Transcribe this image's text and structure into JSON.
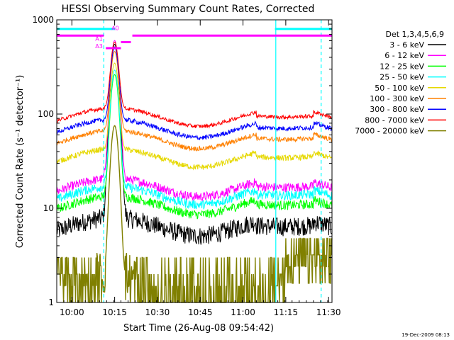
{
  "title": "HESSI Observing Summary Count Rates, Corrected",
  "footer_date": "19-Dec-2009 08:13",
  "chart_data": {
    "type": "line",
    "title": "HESSI Observing Summary Count Rates, Corrected",
    "xlabel": "Start Time (26-Aug-08 09:54:42)",
    "ylabel": "Corrected Count Rate (s⁻¹ detector⁻¹)",
    "yscale": "log",
    "ylim": [
      1,
      1000
    ],
    "xlim_minutes": [
      0,
      96.5
    ],
    "x_ticks": [
      {
        "label": "10:00",
        "min": 5.3
      },
      {
        "label": "10:15",
        "min": 20.3
      },
      {
        "label": "10:30",
        "min": 35.3
      },
      {
        "label": "10:45",
        "min": 50.3
      },
      {
        "label": "11:00",
        "min": 65.3
      },
      {
        "label": "11:15",
        "min": 80.3
      },
      {
        "label": "11:30",
        "min": 95.3
      }
    ],
    "y_ticks": [
      {
        "label": "1",
        "value": 1
      },
      {
        "label": "10",
        "value": 10
      },
      {
        "label": "100",
        "value": 100
      },
      {
        "label": "1000",
        "value": 1000
      }
    ],
    "legend_title": "Det 1,3,4,5,6,9",
    "legend_position": "right",
    "series": [
      {
        "name": "3 - 6 keV",
        "color": "#000000",
        "base": 6.5,
        "peak": 550,
        "noise": 0.1
      },
      {
        "name": "6 - 12 keV",
        "color": "#ff00ff",
        "base": 17,
        "peak": 600,
        "noise": 0.05
      },
      {
        "name": "12 - 25 keV",
        "color": "#00ff00",
        "base": 11,
        "peak": 260,
        "noise": 0.05
      },
      {
        "name": "25 - 50 keV",
        "color": "#00ffff",
        "base": 14,
        "peak": 290,
        "noise": 0.05
      },
      {
        "name": "50 - 100 keV",
        "color": "#e6d800",
        "base": 35,
        "peak": 340,
        "noise": 0.03
      },
      {
        "name": "100 - 300 keV",
        "color": "#ff8000",
        "base": 55,
        "peak": 450,
        "noise": 0.025
      },
      {
        "name": "300 - 800 keV",
        "color": "#0000ff",
        "base": 72,
        "peak": 500,
        "noise": 0.025
      },
      {
        "name": "800 - 7000 keV",
        "color": "#ff0000",
        "base": 95,
        "peak": 560,
        "noise": 0.02
      },
      {
        "name": "7000 - 20000 keV",
        "color": "#808000",
        "base": 1.5,
        "peak": 75,
        "noise": 0.3
      }
    ],
    "flag_bars": [
      {
        "color": "#00ffff",
        "start_min": 0,
        "end_min": 20.5,
        "level": 800
      },
      {
        "color": "#00ffff",
        "start_min": 76.5,
        "end_min": 96.5,
        "level": 800
      },
      {
        "color": "#ff00ff",
        "start_min": 0,
        "end_min": 16.5,
        "level": 680
      },
      {
        "color": "#ff00ff",
        "start_min": 26.5,
        "end_min": 96.5,
        "level": 680
      },
      {
        "color": "#ff00ff",
        "start_min": 22.5,
        "end_min": 26,
        "level": 580
      },
      {
        "color": "#ff00ff",
        "start_min": 17.2,
        "end_min": 22.5,
        "level": 500
      }
    ],
    "attenuator_labels": [
      {
        "text": "A0",
        "min": 19.2,
        "value": 780
      },
      {
        "text": "A1",
        "min": 13.5,
        "value": 600
      },
      {
        "text": "A3",
        "min": 13.5,
        "value": 500
      }
    ],
    "cyan_lines": [
      {
        "min": 16.5,
        "style": "dashed"
      },
      {
        "min": 76.8,
        "style": "solid"
      },
      {
        "min": 92.7,
        "style": "dashed"
      }
    ]
  }
}
